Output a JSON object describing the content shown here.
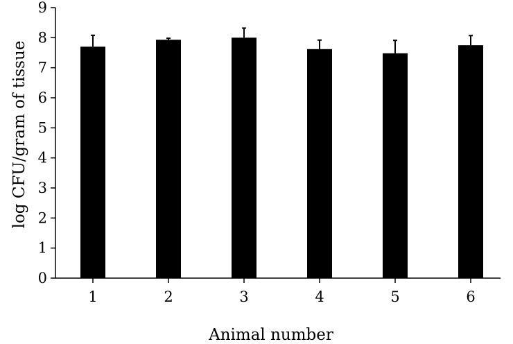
{
  "chart_data": {
    "type": "bar",
    "title": "",
    "xlabel": "Animal number",
    "ylabel": "log CFU/gram of tissue",
    "categories": [
      "1",
      "2",
      "3",
      "4",
      "5",
      "6"
    ],
    "values": [
      7.7,
      7.93,
      8.0,
      7.62,
      7.48,
      7.75
    ],
    "error_upper": [
      0.38,
      0.05,
      0.32,
      0.3,
      0.43,
      0.32
    ],
    "ylim": [
      0,
      9
    ],
    "yticks": [
      0,
      1,
      2,
      3,
      4,
      5,
      6,
      7,
      8,
      9
    ],
    "grid": false,
    "legend": "none",
    "bar_color": "#000000"
  }
}
